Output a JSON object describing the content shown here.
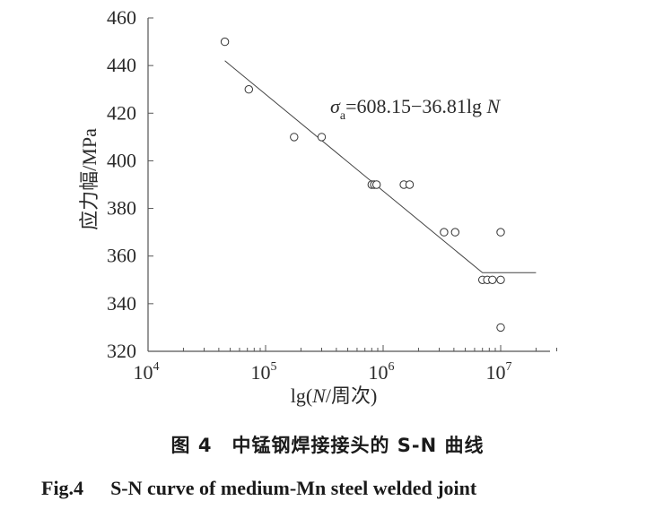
{
  "chart_data": {
    "type": "scatter",
    "x_scale": "log",
    "x_tick_labels": [
      {
        "value": 10000,
        "base": "10",
        "exp": "4"
      },
      {
        "value": 100000,
        "base": "10",
        "exp": "5"
      },
      {
        "value": 1000000,
        "base": "10",
        "exp": "6"
      },
      {
        "value": 10000000,
        "base": "10",
        "exp": "7"
      }
    ],
    "xlabel": {
      "prefix": "lg(",
      "var": "N",
      "suffix": "/周次)"
    },
    "ylabel": "应力幅/MPa",
    "y_ticks": [
      320,
      340,
      360,
      380,
      400,
      420,
      440,
      460
    ],
    "xlim": [
      10000,
      32000000
    ],
    "ylim": [
      320,
      460
    ],
    "grid": false,
    "points": [
      {
        "x": 45000,
        "y": 450
      },
      {
        "x": 72000,
        "y": 430
      },
      {
        "x": 175000,
        "y": 410
      },
      {
        "x": 300000,
        "y": 410
      },
      {
        "x": 800000,
        "y": 390
      },
      {
        "x": 840000,
        "y": 390
      },
      {
        "x": 880000,
        "y": 390
      },
      {
        "x": 1500000,
        "y": 390
      },
      {
        "x": 1680000,
        "y": 390
      },
      {
        "x": 3300000,
        "y": 370
      },
      {
        "x": 4100000,
        "y": 370
      },
      {
        "x": 7000000,
        "y": 350
      },
      {
        "x": 7700000,
        "y": 350
      },
      {
        "x": 8500000,
        "y": 350
      },
      {
        "x": 10000000,
        "y": 350
      },
      {
        "x": 10000000,
        "y": 370
      },
      {
        "x": 10000000,
        "y": 330
      }
    ],
    "fit_line": [
      {
        "x": 45000,
        "y": 442
      },
      {
        "x": 7000000,
        "y": 353
      },
      {
        "x": 20000000,
        "y": 353
      }
    ],
    "equation": {
      "sigma": "σ",
      "sub": "a",
      "rhs": "=608.15−36.81lg ",
      "var": "N"
    }
  },
  "caption": {
    "cn": "图 4　中锰钢焊接接头的 S-N 曲线",
    "en_fig": "Fig.4",
    "en_text": "S-N curve of medium-Mn steel welded joint"
  }
}
